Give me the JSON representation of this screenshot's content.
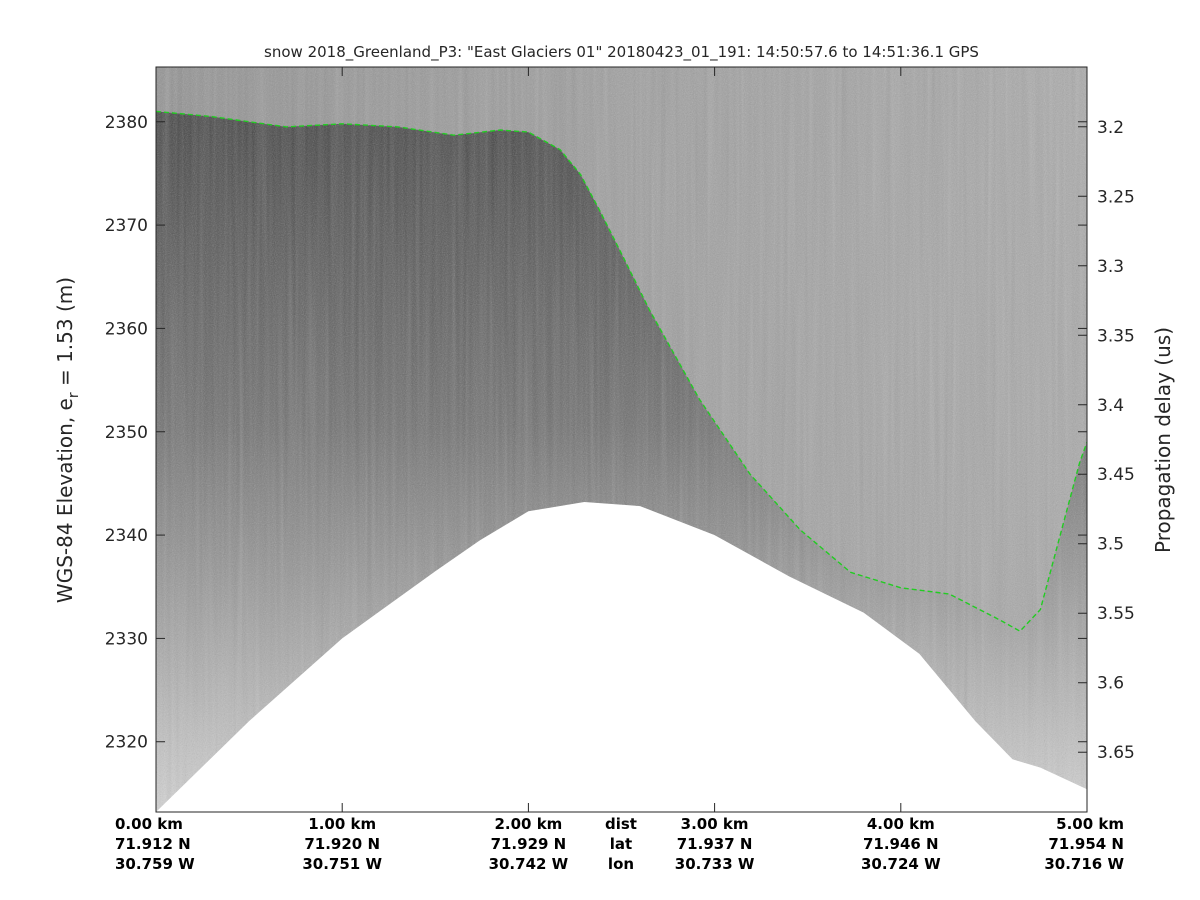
{
  "chart_data": {
    "type": "heatmap",
    "subtype": "radar echogram (grayscale) with surface trace",
    "title": "snow 2018_Greenland_P3: \"East Glaciers 01\"  20180423_01_191: 14:50:57.6 to 14:51:36.1 GPS",
    "ylabel_left": "WGS-84 Elevation, e",
    "ylabel_left_sub": "r",
    "ylabel_left_tail": " = 1.53 (m)",
    "ylabel_right": "Propagation delay (us)",
    "ylim_left": [
      2313.2,
      2385.3
    ],
    "ylim_right": [
      3.157,
      3.693
    ],
    "xlim_km": [
      0,
      5
    ],
    "colormap": "gray",
    "y_ticks_left": [
      2320,
      2330,
      2340,
      2350,
      2360,
      2370,
      2380
    ],
    "y_ticks_right": [
      "3.2",
      "3.25",
      "3.3",
      "3.35",
      "3.4",
      "3.45",
      "3.5",
      "3.55",
      "3.6",
      "3.65"
    ],
    "x_rows": [
      {
        "label": "dist",
        "ticks": [
          "0.00 km",
          "1.00 km",
          "2.00 km",
          "3.00 km",
          "4.00 km",
          "5.00 km"
        ]
      },
      {
        "label": "lat",
        "ticks": [
          "71.912 N",
          "71.920 N",
          "71.929 N",
          "71.937 N",
          "71.946 N",
          "71.954 N"
        ]
      },
      {
        "label": "lon",
        "ticks": [
          "30.759 W",
          "30.751 W",
          "30.742 W",
          "30.733 W",
          "30.724 W",
          "30.716 W"
        ]
      }
    ],
    "surface_trace": {
      "color": "#22cc22",
      "style": "dashed",
      "x_km": [
        0,
        0.3,
        0.7,
        1.0,
        1.3,
        1.6,
        1.85,
        2.0,
        2.17,
        2.28,
        2.38,
        2.49,
        2.65,
        2.92,
        3.19,
        3.46,
        3.73,
        4.0,
        4.26,
        4.53,
        4.64,
        4.75,
        4.85,
        4.96,
        5.0
      ],
      "elevation_m": [
        2381,
        2380.5,
        2379.5,
        2379.8,
        2379.5,
        2378.7,
        2379.2,
        2379,
        2377.3,
        2374.9,
        2371.5,
        2367.6,
        2361.8,
        2353.1,
        2345.9,
        2340.5,
        2336.4,
        2334.9,
        2334.3,
        2331.8,
        2330.7,
        2332.8,
        2339.6,
        2347,
        2349
      ]
    },
    "lower_data_boundary": {
      "x_km": [
        0,
        0.5,
        1.0,
        1.5,
        1.74,
        2.0,
        2.3,
        2.6,
        3.0,
        3.4,
        3.8,
        4.1,
        4.4,
        4.6,
        4.75,
        5.0
      ],
      "elevation_m": [
        2313.2,
        2322,
        2330,
        2336.5,
        2339.5,
        2342.3,
        2343.2,
        2342.8,
        2340,
        2336,
        2332.5,
        2328.5,
        2322,
        2318.3,
        2317.5,
        2315.4
      ]
    }
  }
}
